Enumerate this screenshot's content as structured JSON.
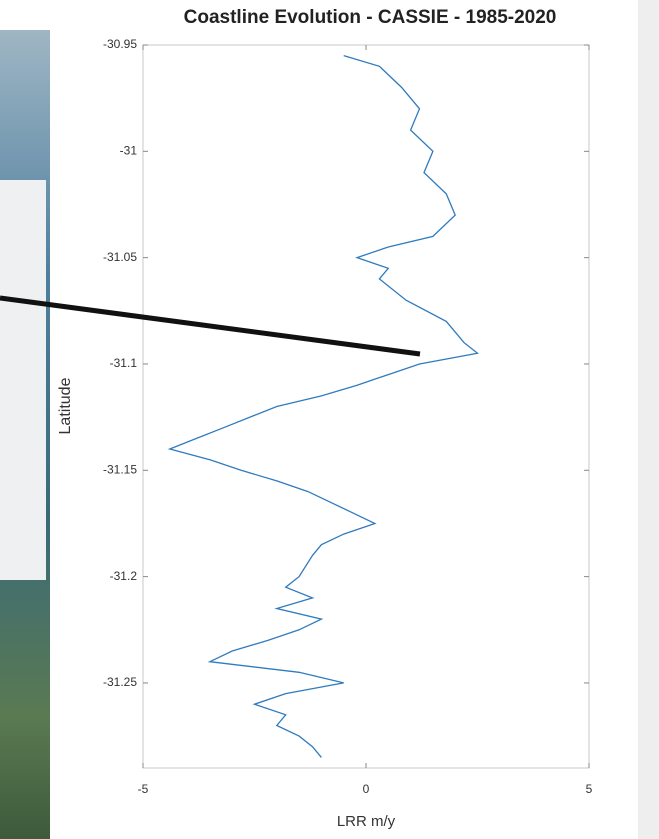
{
  "chart_data": {
    "type": "line",
    "title": "Coastline Evolution - CASSIE - 1985-2020",
    "x_label": "LRR m/y",
    "y_label": "Latitude",
    "xlim": [
      -5,
      5
    ],
    "xticks": [
      -5,
      0,
      5
    ],
    "ylim": [
      -31.29,
      -30.95
    ],
    "yticks": [
      -30.95,
      -31,
      -31.05,
      -31.1,
      -31.15,
      -31.2,
      -31.25
    ],
    "color": "#2f7bbf",
    "x": [
      -0.5,
      0.3,
      0.8,
      1.2,
      1.0,
      1.5,
      1.3,
      1.8,
      2.0,
      1.5,
      0.5,
      -0.2,
      0.5,
      0.3,
      0.9,
      1.8,
      2.2,
      2.5,
      1.2,
      0.5,
      -0.2,
      -1.0,
      -2.0,
      -2.6,
      -3.2,
      -3.8,
      -4.4,
      -3.5,
      -2.8,
      -2.0,
      -1.3,
      -0.8,
      -0.3,
      0.2,
      -0.5,
      -1.0,
      -1.2,
      -1.5,
      -1.8,
      -1.2,
      -2.0,
      -1.0,
      -1.5,
      -2.2,
      -3.0,
      -3.5,
      -1.5,
      -0.5,
      -1.8,
      -2.5,
      -1.8,
      -2.0,
      -1.5,
      -1.2,
      -1.0
    ],
    "values": [
      -30.955,
      -30.96,
      -30.97,
      -30.98,
      -30.99,
      -31.0,
      -31.01,
      -31.02,
      -31.03,
      -31.04,
      -31.045,
      -31.05,
      -31.055,
      -31.06,
      -31.07,
      -31.08,
      -31.09,
      -31.095,
      -31.1,
      -31.105,
      -31.11,
      -31.115,
      -31.12,
      -31.125,
      -31.13,
      -31.135,
      -31.14,
      -31.145,
      -31.15,
      -31.155,
      -31.16,
      -31.165,
      -31.17,
      -31.175,
      -31.18,
      -31.185,
      -31.19,
      -31.2,
      -31.205,
      -31.21,
      -31.215,
      -31.22,
      -31.225,
      -31.23,
      -31.235,
      -31.24,
      -31.245,
      -31.25,
      -31.255,
      -31.26,
      -31.265,
      -31.27,
      -31.275,
      -31.28,
      -31.285
    ]
  }
}
